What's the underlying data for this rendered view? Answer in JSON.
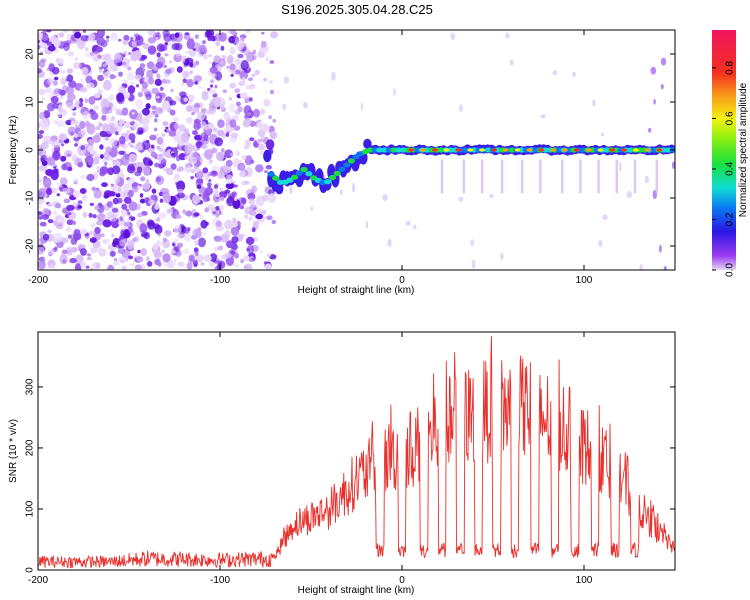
{
  "title": "S196.2025.305.04.28.C25",
  "colors": {
    "snr_line": "#e8302c",
    "dots": "#7b2cf0",
    "axis": "#000000"
  },
  "chart_data": [
    {
      "type": "heatmap",
      "name": "spectrogram",
      "xlabel": "Height of straight line (km)",
      "ylabel": "Frequency (Hz)",
      "xlim": [
        -200,
        150
      ],
      "ylim": [
        -25,
        25
      ],
      "x_ticks": [
        -200,
        -100,
        0,
        100
      ],
      "x_tick_labels": [
        "-200",
        "-100",
        "0",
        "100"
      ],
      "y_ticks": [
        -20,
        -10,
        0,
        10,
        20
      ],
      "y_tick_labels": [
        "-20",
        "-10",
        "0",
        "10",
        "20"
      ],
      "signal_track": [
        {
          "x": -72,
          "y": -5
        },
        {
          "x": -66,
          "y": -7
        },
        {
          "x": -60,
          "y": -6
        },
        {
          "x": -54,
          "y": -4
        },
        {
          "x": -48,
          "y": -6
        },
        {
          "x": -42,
          "y": -7
        },
        {
          "x": -36,
          "y": -5
        },
        {
          "x": -30,
          "y": -3
        },
        {
          "x": -24,
          "y": -1
        },
        {
          "x": -18,
          "y": 0
        },
        {
          "x": -10,
          "y": 0
        },
        {
          "x": 0,
          "y": 0
        },
        {
          "x": 20,
          "y": 0
        },
        {
          "x": 60,
          "y": 0
        },
        {
          "x": 100,
          "y": 0
        },
        {
          "x": 140,
          "y": 0
        },
        {
          "x": 150,
          "y": 0
        }
      ],
      "colorbar": {
        "label": "Normalized spectral amplitude",
        "range": [
          0,
          0.95
        ],
        "ticks": [
          0.0,
          0.2,
          0.4,
          0.6,
          0.8
        ],
        "tick_labels": [
          "0.0",
          "0.2",
          "0.4",
          "0.6",
          "0.8"
        ]
      }
    },
    {
      "type": "line",
      "name": "snr",
      "xlabel": "Height of straight line (km)",
      "ylabel": "SNR (10 * v/v)",
      "xlim": [
        -200,
        150
      ],
      "ylim": [
        0,
        390
      ],
      "x_ticks": [
        -200,
        -100,
        0,
        100
      ],
      "x_tick_labels": [
        "-200",
        "-100",
        "0",
        "100"
      ],
      "y_ticks": [
        0,
        100,
        200,
        300
      ],
      "y_tick_labels": [
        "0",
        "100",
        "200",
        "300"
      ],
      "envelope": [
        {
          "x": -200,
          "y": 18
        },
        {
          "x": -160,
          "y": 18
        },
        {
          "x": -140,
          "y": 25
        },
        {
          "x": -100,
          "y": 22
        },
        {
          "x": -70,
          "y": 25
        },
        {
          "x": -60,
          "y": 90
        },
        {
          "x": -40,
          "y": 120
        },
        {
          "x": -25,
          "y": 180
        },
        {
          "x": -10,
          "y": 220
        },
        {
          "x": 10,
          "y": 250
        },
        {
          "x": 30,
          "y": 300
        },
        {
          "x": 50,
          "y": 320
        },
        {
          "x": 70,
          "y": 320
        },
        {
          "x": 90,
          "y": 280
        },
        {
          "x": 110,
          "y": 220
        },
        {
          "x": 125,
          "y": 150
        },
        {
          "x": 140,
          "y": 80
        },
        {
          "x": 150,
          "y": 40
        }
      ],
      "dips_x": [
        -12,
        0,
        12,
        22,
        32,
        42,
        52,
        62,
        73,
        84,
        95,
        106,
        117,
        128
      ]
    }
  ]
}
